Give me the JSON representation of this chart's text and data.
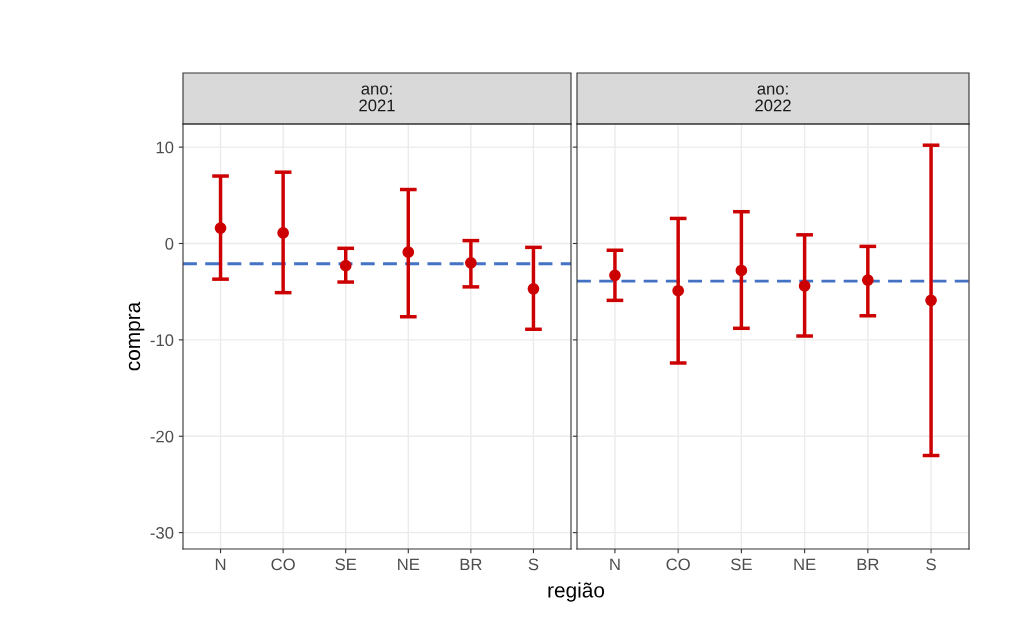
{
  "chart_data": [
    {
      "type": "scatter",
      "title": "ano:\n2021",
      "ylabel": "compra",
      "xlabel": "região",
      "categories": [
        "N",
        "CO",
        "SE",
        "NE",
        "BR",
        "S"
      ],
      "series": [
        {
          "color": "#cc0000",
          "values": [
            1.6,
            1.1,
            -2.3,
            -0.9,
            -2.0,
            -4.7
          ],
          "errors": [
            [
              -3.7,
              7.0
            ],
            [
              -5.1,
              7.4
            ],
            [
              -4.0,
              -0.5
            ],
            [
              -7.6,
              5.6
            ],
            [
              -4.5,
              0.3
            ],
            [
              -8.9,
              -0.4
            ]
          ]
        }
      ],
      "ylim": [
        -31.7,
        12.4
      ],
      "yticks": [
        -30,
        -20,
        -10,
        0,
        10
      ],
      "grid": true,
      "marker": "circle",
      "ref_lines": [
        {
          "axis": "y",
          "value": -2.1,
          "color": "#4472c4",
          "line_style": "dashed"
        }
      ]
    },
    {
      "type": "scatter",
      "title": "ano:\n2022",
      "categories": [
        "N",
        "CO",
        "SE",
        "NE",
        "BR",
        "S"
      ],
      "series": [
        {
          "color": "#cc0000",
          "values": [
            -3.3,
            -4.9,
            -2.8,
            -4.4,
            -3.8,
            -5.9
          ],
          "errors": [
            [
              -5.9,
              -0.7
            ],
            [
              -12.4,
              2.6
            ],
            [
              -8.8,
              3.3
            ],
            [
              -9.6,
              0.9
            ],
            [
              -7.5,
              -0.3
            ],
            [
              -22.0,
              10.2
            ]
          ]
        }
      ],
      "ylim": [
        -31.7,
        12.4
      ],
      "yticks": [
        -30,
        -20,
        -10,
        0,
        10
      ],
      "grid": true,
      "marker": "circle",
      "tick_labels": "x",
      "ref_lines": [
        {
          "axis": "y",
          "value": -3.9,
          "color": "#4472c4",
          "line_style": "dashed"
        }
      ]
    }
  ]
}
